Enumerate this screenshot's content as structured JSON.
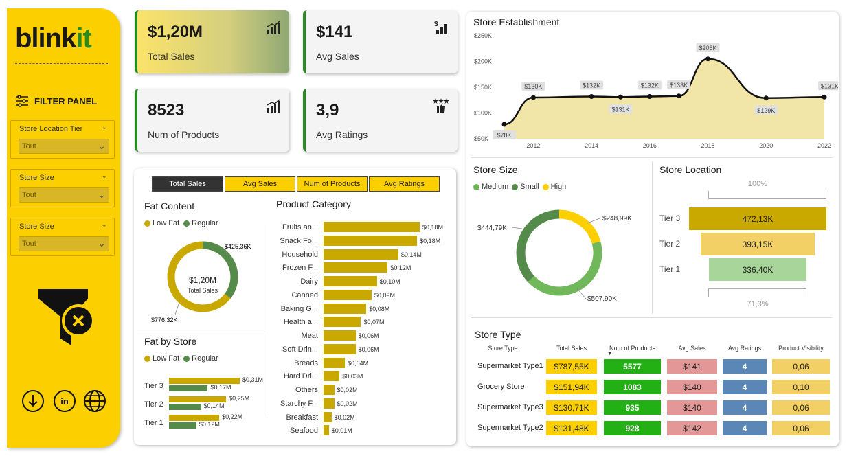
{
  "brand": {
    "name_part1": "blink",
    "name_part2": "it"
  },
  "filter_panel": {
    "title": "FILTER PANEL",
    "filters": [
      {
        "label": "Store Location Tier",
        "value": "Tout"
      },
      {
        "label": "Store Size",
        "value": "Tout"
      },
      {
        "label": "Store Size",
        "value": "Tout"
      }
    ]
  },
  "kpis": [
    {
      "value": "$1,20M",
      "label": "Total Sales"
    },
    {
      "value": "$141",
      "label": "Avg Sales"
    },
    {
      "value": "8523",
      "label": "Num of Products"
    },
    {
      "value": "3,9",
      "label": "Avg Ratings"
    }
  ],
  "tabs": [
    "Total Sales",
    "Avg Sales",
    "Num of Products",
    "Avg Ratings"
  ],
  "fat_content": {
    "title": "Fat Content",
    "legend": [
      "Low Fat",
      "Regular"
    ],
    "center_value": "$1,20M",
    "center_label": "Total Sales",
    "low_fat_label": "$776,32K",
    "regular_label": "$425,36K"
  },
  "fat_by_store": {
    "title": "Fat by Store",
    "legend": [
      "Low Fat",
      "Regular"
    ],
    "rows": [
      {
        "tier": "Tier 3",
        "low": "$0,31M",
        "reg": "$0,17M"
      },
      {
        "tier": "Tier 2",
        "low": "$0,25M",
        "reg": "$0,14M"
      },
      {
        "tier": "Tier 1",
        "low": "$0,22M",
        "reg": "$0,12M"
      }
    ]
  },
  "product_category": {
    "title": "Product Category",
    "items": [
      {
        "name": "Fruits an...",
        "value": "$0,18M"
      },
      {
        "name": "Snack Fo...",
        "value": "$0,18M"
      },
      {
        "name": "Household",
        "value": "$0,14M"
      },
      {
        "name": "Frozen F...",
        "value": "$0,12M"
      },
      {
        "name": "Dairy",
        "value": "$0,10M"
      },
      {
        "name": "Canned",
        "value": "$0,09M"
      },
      {
        "name": "Baking G...",
        "value": "$0,08M"
      },
      {
        "name": "Health a...",
        "value": "$0,07M"
      },
      {
        "name": "Meat",
        "value": "$0,06M"
      },
      {
        "name": "Soft Drin...",
        "value": "$0,06M"
      },
      {
        "name": "Breads",
        "value": "$0,04M"
      },
      {
        "name": "Hard Dri...",
        "value": "$0,03M"
      },
      {
        "name": "Others",
        "value": "$0,02M"
      },
      {
        "name": "Starchy F...",
        "value": "$0,02M"
      },
      {
        "name": "Breakfast",
        "value": "$0,02M"
      },
      {
        "name": "Seafood",
        "value": "$0,01M"
      }
    ]
  },
  "store_establishment": {
    "title": "Store Establishment",
    "yticks": [
      "$250K",
      "$200K",
      "$150K",
      "$100K",
      "$50K"
    ],
    "xticks": [
      "2012",
      "2014",
      "2016",
      "2018",
      "2020",
      "2022"
    ],
    "points": [
      {
        "label": "$78K"
      },
      {
        "label": "$130K"
      },
      {
        "label": "$132K"
      },
      {
        "label": "$131K"
      },
      {
        "label": "$132K"
      },
      {
        "label": "$133K"
      },
      {
        "label": "$205K"
      },
      {
        "label": "$129K"
      },
      {
        "label": "$131K"
      }
    ]
  },
  "store_size": {
    "title": "Store Size",
    "legend": [
      "Medium",
      "Small",
      "High"
    ],
    "high": "$248,99K",
    "medium": "$507,90K",
    "small": "$444,79K"
  },
  "store_location": {
    "title": "Store Location",
    "top_pct": "100%",
    "bottom_pct": "71,3%",
    "rows": [
      {
        "tier": "Tier 3",
        "value": "472,13K"
      },
      {
        "tier": "Tier 2",
        "value": "393,15K"
      },
      {
        "tier": "Tier 1",
        "value": "336,40K"
      }
    ]
  },
  "store_type": {
    "title": "Store Type",
    "headers": [
      "Store Type",
      "Total Sales",
      "Num of Products",
      "Avg Sales",
      "Avg Ratings",
      "Product Visibility"
    ],
    "rows": [
      {
        "type": "Supermarket Type1",
        "sales": "$787,55K",
        "num": "5577",
        "avg": "$141",
        "rating": "4",
        "vis": "0,06"
      },
      {
        "type": "Grocery Store",
        "sales": "$151,94K",
        "num": "1083",
        "avg": "$140",
        "rating": "4",
        "vis": "0,10"
      },
      {
        "type": "Supermarket Type3",
        "sales": "$130,71K",
        "num": "935",
        "avg": "$140",
        "rating": "4",
        "vis": "0,06"
      },
      {
        "type": "Supermarket Type2",
        "sales": "$131,48K",
        "num": "928",
        "avg": "$142",
        "rating": "4",
        "vis": "0,06"
      }
    ]
  },
  "colors": {
    "yellow": "#fccf00",
    "gold": "#c9a800",
    "green": "#2a8a22",
    "lightgreen": "#70b85a",
    "darkgreen": "#548a4a"
  },
  "chart_data": [
    {
      "type": "line",
      "title": "Store Establishment",
      "x": [
        2011,
        2012,
        2014,
        2015,
        2016,
        2017,
        2018,
        2020,
        2022
      ],
      "values": [
        78,
        130,
        132,
        131,
        132,
        133,
        205,
        129,
        131
      ],
      "ylim": [
        50,
        250
      ],
      "ylabel": "$K"
    },
    {
      "type": "pie",
      "title": "Fat Content",
      "categories": [
        "Low Fat",
        "Regular"
      ],
      "values": [
        776.32,
        425.36
      ]
    },
    {
      "type": "pie",
      "title": "Store Size",
      "categories": [
        "Medium",
        "Small",
        "High"
      ],
      "values": [
        507.9,
        444.79,
        248.99
      ]
    },
    {
      "type": "bar",
      "title": "Product Category",
      "categories": [
        "Fruits an...",
        "Snack Fo...",
        "Household",
        "Frozen F...",
        "Dairy",
        "Canned",
        "Baking G...",
        "Health a...",
        "Meat",
        "Soft Drin...",
        "Breads",
        "Hard Dri...",
        "Others",
        "Starchy F...",
        "Breakfast",
        "Seafood"
      ],
      "values": [
        0.18,
        0.175,
        0.14,
        0.12,
        0.1,
        0.09,
        0.08,
        0.07,
        0.06,
        0.06,
        0.04,
        0.03,
        0.02,
        0.02,
        0.015,
        0.01
      ]
    },
    {
      "type": "bar",
      "title": "Fat by Store",
      "categories": [
        "Tier 3",
        "Tier 2",
        "Tier 1"
      ],
      "series": [
        {
          "name": "Low Fat",
          "values": [
            0.31,
            0.25,
            0.22
          ]
        },
        {
          "name": "Regular",
          "values": [
            0.17,
            0.14,
            0.12
          ]
        }
      ]
    },
    {
      "type": "bar",
      "title": "Store Location",
      "categories": [
        "Tier 3",
        "Tier 2",
        "Tier 1"
      ],
      "values": [
        472.13,
        393.15,
        336.4
      ]
    }
  ]
}
